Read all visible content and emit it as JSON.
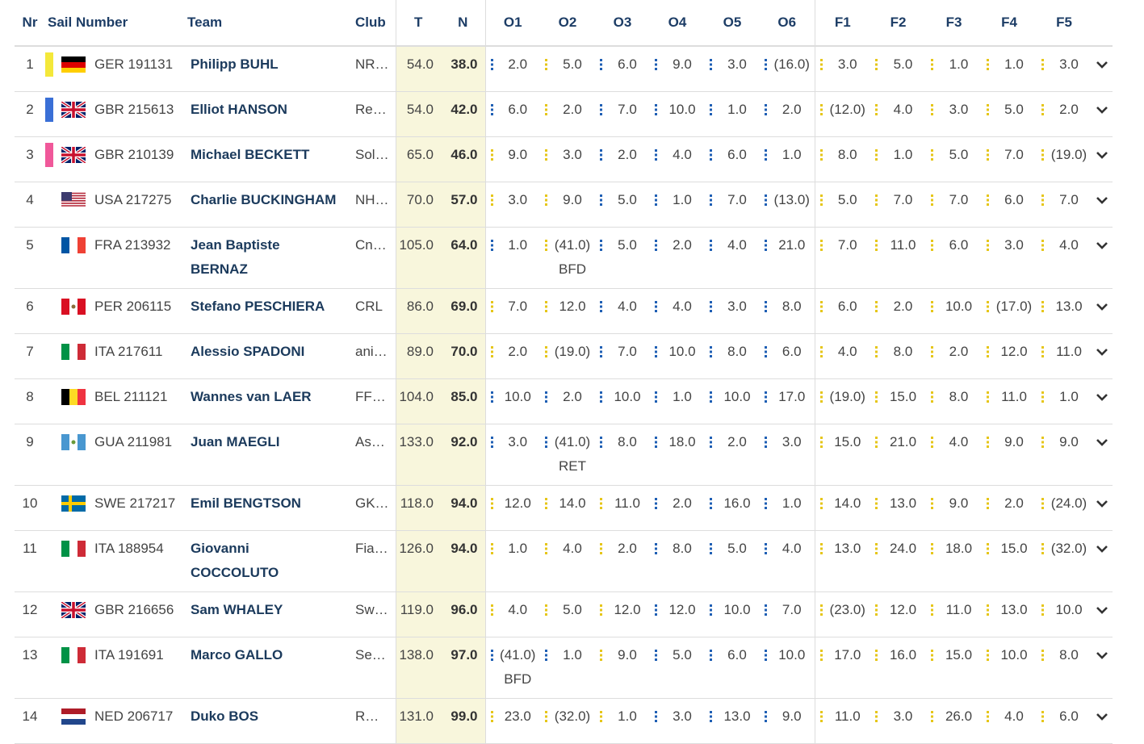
{
  "table": {
    "columns": [
      "Nr",
      "Sail Number",
      "Team",
      "Club",
      "T",
      "N",
      "O1",
      "O2",
      "O3",
      "O4",
      "O5",
      "O6",
      "F1",
      "F2",
      "F3",
      "F4",
      "F5"
    ],
    "rows": [
      {
        "nr": "1",
        "sail": "GER 191131",
        "team": "Philipp BUHL",
        "club": "NR…",
        "t": "54.0",
        "n": "38.0",
        "fleets": "bybbbbyyyyy",
        "marker": "#f4e83a",
        "scores": [
          "2.0",
          "5.0",
          "6.0",
          "9.0",
          "3.0",
          "(16.0)",
          "3.0",
          "5.0",
          "1.0",
          "1.0",
          "3.0"
        ]
      },
      {
        "nr": "2",
        "sail": "GBR 215613",
        "team": "Elliot HANSON",
        "club": "Re…",
        "t": "54.0",
        "n": "42.0",
        "fleets": "bybbbbyyyyy",
        "marker": "#3a6fd6",
        "scores": [
          "6.0",
          "2.0",
          "7.0",
          "10.0",
          "1.0",
          "2.0",
          "(12.0)",
          "4.0",
          "3.0",
          "5.0",
          "2.0"
        ]
      },
      {
        "nr": "3",
        "sail": "GBR 210139",
        "team": "Michael BECKETT",
        "club": "Sol…",
        "t": "65.0",
        "n": "46.0",
        "fleets": "yybbbbyyyyy",
        "marker": "#f0589a",
        "scores": [
          "9.0",
          "3.0",
          "2.0",
          "4.0",
          "6.0",
          "1.0",
          "8.0",
          "1.0",
          "5.0",
          "7.0",
          "(19.0)"
        ]
      },
      {
        "nr": "4",
        "sail": "USA 217275",
        "team": "Charlie BUCKINGHAM",
        "club": "NH…",
        "t": "70.0",
        "n": "57.0",
        "fleets": "yybbbbyyyyy",
        "scores": [
          "3.0",
          "9.0",
          "5.0",
          "1.0",
          "7.0",
          "(13.0)",
          "5.0",
          "7.0",
          "7.0",
          "6.0",
          "7.0"
        ]
      },
      {
        "nr": "5",
        "sail": "FRA 213932",
        "team": "Jean Baptiste BERNAZ",
        "club": "Cn…",
        "t": "105.0",
        "n": "64.0",
        "fleets": "bybbbbyyyyy",
        "scores": [
          "1.0",
          {
            "score": "(41.0)",
            "code": "BFD"
          },
          "5.0",
          "2.0",
          "4.0",
          "21.0",
          "7.0",
          "11.0",
          "6.0",
          "3.0",
          "4.0"
        ]
      },
      {
        "nr": "6",
        "sail": "PER 206115",
        "team": "Stefano PESCHIERA",
        "club": "CRL",
        "t": "86.0",
        "n": "69.0",
        "fleets": "yybbbbyyyyy",
        "scores": [
          "7.0",
          "12.0",
          "4.0",
          "4.0",
          "3.0",
          "8.0",
          "6.0",
          "2.0",
          "10.0",
          "(17.0)",
          "13.0"
        ]
      },
      {
        "nr": "7",
        "sail": "ITA 217611",
        "team": "Alessio SPADONI",
        "club": "ani…",
        "t": "89.0",
        "n": "70.0",
        "fleets": "yybbbbyyyyy",
        "scores": [
          "2.0",
          "(19.0)",
          "7.0",
          "10.0",
          "8.0",
          "6.0",
          "4.0",
          "8.0",
          "2.0",
          "12.0",
          "11.0"
        ]
      },
      {
        "nr": "8",
        "sail": "BEL 211121",
        "team": "Wannes van LAER",
        "club": "FF…",
        "t": "104.0",
        "n": "85.0",
        "fleets": "bbbbbbyyyyy",
        "scores": [
          "10.0",
          "2.0",
          "10.0",
          "1.0",
          "10.0",
          "17.0",
          "(19.0)",
          "15.0",
          "8.0",
          "11.0",
          "1.0"
        ]
      },
      {
        "nr": "9",
        "sail": "GUA 211981",
        "team": "Juan MAEGLI",
        "club": "As…",
        "t": "133.0",
        "n": "92.0",
        "fleets": "bbbbbbyyyyy",
        "scores": [
          "3.0",
          {
            "score": "(41.0)",
            "code": "RET"
          },
          "8.0",
          "18.0",
          "2.0",
          "3.0",
          "15.0",
          "21.0",
          "4.0",
          "9.0",
          "9.0"
        ]
      },
      {
        "nr": "10",
        "sail": "SWE 217217",
        "team": "Emil BENGTSON",
        "club": "GK…",
        "t": "118.0",
        "n": "94.0",
        "fleets": "yyybbbyyyyy",
        "scores": [
          "12.0",
          "14.0",
          "11.0",
          "2.0",
          "16.0",
          "1.0",
          "14.0",
          "13.0",
          "9.0",
          "2.0",
          "(24.0)"
        ]
      },
      {
        "nr": "11",
        "sail": "ITA 188954",
        "team": "Giovanni COCCOLUTO",
        "club": "Fia…",
        "t": "126.0",
        "n": "94.0",
        "fleets": "yyybbbyyyyy",
        "scores": [
          "1.0",
          "4.0",
          "2.0",
          "8.0",
          "5.0",
          "4.0",
          "13.0",
          "24.0",
          "18.0",
          "15.0",
          "(32.0)"
        ]
      },
      {
        "nr": "12",
        "sail": "GBR 216656",
        "team": "Sam WHALEY",
        "club": "Sw…",
        "t": "119.0",
        "n": "96.0",
        "fleets": "yyybbbyyyyy",
        "scores": [
          "4.0",
          "5.0",
          "12.0",
          "12.0",
          "10.0",
          "7.0",
          "(23.0)",
          "12.0",
          "11.0",
          "13.0",
          "10.0"
        ]
      },
      {
        "nr": "13",
        "sail": "ITA 191691",
        "team": "Marco GALLO",
        "club": "Se…",
        "t": "138.0",
        "n": "97.0",
        "fleets": "bbybbbyyyyy",
        "scores": [
          {
            "score": "(41.0)",
            "code": "BFD"
          },
          "1.0",
          "9.0",
          "5.0",
          "6.0",
          "10.0",
          "17.0",
          "16.0",
          "15.0",
          "10.0",
          "8.0"
        ]
      },
      {
        "nr": "14",
        "sail": "NED 206717",
        "team": "Duko BOS",
        "club": "R…",
        "t": "131.0",
        "n": "99.0",
        "fleets": "yyybbbyyyyy",
        "scores": [
          "23.0",
          "(32.0)",
          "1.0",
          "3.0",
          "13.0",
          "9.0",
          "11.0",
          "3.0",
          "26.0",
          "4.0",
          "6.0"
        ]
      }
    ]
  }
}
